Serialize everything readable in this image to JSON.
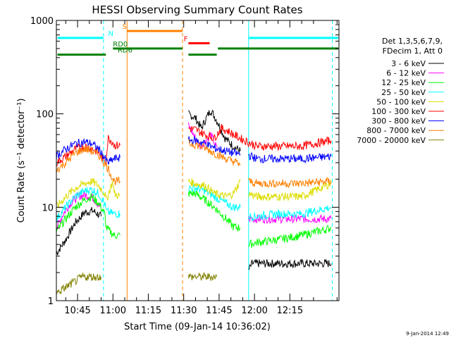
{
  "chart_data": {
    "type": "line",
    "title": "HESSI Observing Summary Count Rates",
    "xlabel": "Start Time (09-Jan-14 10:36:02)",
    "ylabel": "Count Rate (s⁻¹ detector⁻¹)",
    "y_scale": "log",
    "ylim": [
      1,
      1000
    ],
    "x_range_min": [
      36.03,
      155.8
    ],
    "x_tick_labels": [
      "10:45",
      "11:00",
      "11:15",
      "11:30",
      "11:45",
      "12:00",
      "12:15"
    ],
    "x_tick_min": [
      45,
      60,
      75,
      90,
      105,
      120,
      135
    ],
    "y_tick_labels": [
      "1",
      "10",
      "100",
      "1000"
    ],
    "y_tick_values": [
      1,
      10,
      100,
      1000
    ],
    "legend_position": "right",
    "legend_header": [
      "Det 1,3,5,6,7,9,",
      "FDecim 1, Att 0"
    ],
    "series": [
      {
        "name": "3 - 6 keV",
        "color": "#000000",
        "segments": [
          {
            "x": [
              36.03,
              40,
              44,
              48,
              51.5,
              55
            ],
            "y": [
              3.2,
              4.5,
              6.8,
              8.8,
              9.2,
              8
            ]
          },
          {
            "x": [
              92,
              95,
              97.5,
              100,
              101.5,
              104,
              107.5,
              111,
              114
            ],
            "y": [
              100,
              90,
              70,
              95,
              110,
              85,
              55,
              45,
              40
            ]
          },
          {
            "x": [
              117.5,
              119,
              130,
              152.5
            ],
            "y": [
              2.1,
              2.5,
              2.5,
              2.5
            ]
          }
        ]
      },
      {
        "name": "6 - 12 keV",
        "color": "#ff00ff",
        "segments": [
          {
            "x": [
              36.03,
              39,
              42,
              45,
              48,
              51,
              55
            ],
            "y": [
              6,
              8.5,
              11,
              13,
              13.5,
              13,
              10
            ]
          },
          {
            "x": [
              92,
              95,
              97,
              99,
              101.5,
              104.5
            ],
            "y": [
              75,
              55,
              45,
              50,
              60,
              40
            ]
          },
          {
            "x": [
              117.5,
              120,
              130,
              140,
              152.5
            ],
            "y": [
              7.5,
              7.5,
              7.5,
              7.5,
              7.5
            ]
          }
        ]
      },
      {
        "name": "12 - 25 keV",
        "color": "#00ff00",
        "segments": [
          {
            "x": [
              36.03,
              40,
              44,
              48,
              51,
              54,
              56.5,
              57.2,
              60.5,
              63
            ],
            "y": [
              5.5,
              7.5,
              10,
              12,
              13,
              11,
              8.5,
              6,
              5,
              5
            ]
          },
          {
            "x": [
              92,
              95,
              99,
              103,
              108,
              111,
              114
            ],
            "y": [
              14,
              14,
              12,
              10,
              7.5,
              6.2,
              6
            ]
          },
          {
            "x": [
              117.5,
              121,
              130,
              140,
              152.5
            ],
            "y": [
              4,
              4.2,
              4.5,
              5,
              6
            ]
          }
        ]
      },
      {
        "name": "25 - 50 keV",
        "color": "#00ffff",
        "segments": [
          {
            "x": [
              36.03,
              40,
              44,
              48,
              51,
              54,
              56.5,
              57.2,
              60.5,
              63
            ],
            "y": [
              7.5,
              10,
              13,
              15,
              15.5,
              14,
              11,
              9,
              8.5,
              8.5
            ]
          },
          {
            "x": [
              92,
              95,
              99,
              103,
              108,
              111,
              114
            ],
            "y": [
              16,
              16,
              15,
              13,
              11,
              10,
              10
            ]
          },
          {
            "x": [
              117.5,
              121,
              130,
              140,
              152.5
            ],
            "y": [
              8,
              8,
              8.5,
              8.5,
              10
            ]
          }
        ]
      },
      {
        "name": "50 - 100 keV",
        "color": "#dddd00",
        "segments": [
          {
            "x": [
              36.03,
              40,
              44,
              48,
              51,
              54,
              56.5,
              57.2,
              60,
              60.5,
              63
            ],
            "y": [
              10,
              13,
              16,
              18,
              19,
              17,
              14,
              12,
              19,
              14,
              13
            ]
          },
          {
            "x": [
              92,
              95,
              99,
              103,
              108,
              111,
              114
            ],
            "y": [
              19,
              18,
              17,
              14,
              13,
              14,
              19
            ]
          },
          {
            "x": [
              117.5,
              121,
              130,
              140,
              152.5
            ],
            "y": [
              14,
              13,
              13,
              13,
              18
            ]
          }
        ]
      },
      {
        "name": "100 - 300 keV",
        "color": "#ff0000",
        "segments": [
          {
            "x": [
              36.03,
              40,
              44,
              48,
              51,
              54,
              57,
              58,
              60,
              60.5,
              63
            ],
            "y": [
              30,
              35,
              42,
              45,
              43,
              38,
              30,
              55,
              50,
              46,
              46
            ]
          },
          {
            "x": [
              92,
              95,
              99,
              103,
              106,
              109,
              112,
              117,
              121,
              130,
              140,
              152.5
            ],
            "y": [
              70,
              68,
              60,
              55,
              70,
              65,
              58,
              50,
              45,
              45,
              45,
              52
            ]
          }
        ]
      },
      {
        "name": "300 - 800 keV",
        "color": "#0000ff",
        "segments": [
          {
            "x": [
              36.03,
              40,
              44,
              48,
              51,
              54,
              57,
              58,
              60.5,
              63
            ],
            "y": [
              35,
              42,
              48,
              50,
              48,
              42,
              32,
              30,
              33,
              34
            ]
          },
          {
            "x": [
              92,
              95,
              99,
              103,
              108,
              111,
              114
            ],
            "y": [
              52,
              52,
              48,
              43,
              40,
              38,
              37
            ]
          },
          {
            "x": [
              117.5,
              121,
              130,
              140,
              152.5
            ],
            "y": [
              36,
              33,
              33,
              33,
              35
            ]
          }
        ]
      },
      {
        "name": "800 - 7000 keV",
        "color": "#ff8000",
        "segments": [
          {
            "x": [
              36.03,
              40,
              44,
              48,
              51,
              54,
              57,
              58,
              60.5,
              63
            ],
            "y": [
              25,
              30,
              38,
              42,
              40,
              36,
              28,
              26,
              19,
              19
            ]
          },
          {
            "x": [
              92,
              95,
              99,
              103,
              108,
              111,
              114
            ],
            "y": [
              48,
              47,
              43,
              38,
              33,
              31,
              29
            ]
          },
          {
            "x": [
              117.5,
              121,
              130,
              140,
              152.5
            ],
            "y": [
              19,
              18,
              18,
              18,
              19
            ]
          }
        ]
      },
      {
        "name": "7000 - 20000 keV",
        "color": "#808000",
        "segments": [
          {
            "x": [
              36.03,
              47,
              49,
              51,
              53,
              55
            ],
            "y": [
              1.2,
              1.8,
              1.8,
              1.8,
              1.8,
              1.8
            ]
          },
          {
            "x": [
              92,
              94,
              96,
              98,
              100,
              102,
              104
            ],
            "y": [
              1.8,
              1.8,
              1.8,
              1.8,
              1.8,
              1.8,
              1.8
            ]
          }
        ]
      }
    ],
    "flags": [
      {
        "label": "N",
        "color": "#00ffff",
        "level": 650,
        "x_start_min": 36.5,
        "x_end_min": 56,
        "label_x_min": 58
      },
      {
        "label": "",
        "color": "#00ffff",
        "level": 650,
        "x_start_min": 117.5,
        "x_end_min": 155.5,
        "label_x_min": null
      },
      {
        "label": "S",
        "color": "#ff8000",
        "level": 770,
        "x_start_min": 66,
        "x_end_min": 89.5,
        "label_x_min": 64
      },
      {
        "label": "F",
        "color": "#ff0000",
        "level": 570,
        "x_start_min": 92,
        "x_end_min": 101,
        "label_x_min": 90
      },
      {
        "label": "RD0",
        "color": "#008000",
        "level": 500,
        "x_start_min": 60,
        "x_end_min": 89.5,
        "label_x_min": 60
      },
      {
        "label": "",
        "color": "#008000",
        "level": 500,
        "x_start_min": 104.5,
        "x_end_min": 155.5,
        "label_x_min": null
      },
      {
        "label": "RD6",
        "color": "#008000",
        "level": 430,
        "x_start_min": 36.5,
        "x_end_min": 57,
        "label_x_min": 62
      },
      {
        "label": "",
        "color": "#008000",
        "level": 430,
        "x_start_min": 92,
        "x_end_min": 104,
        "label_x_min": null
      }
    ],
    "vertical_lines": [
      {
        "x_min": 36.03,
        "color": "#00ffff",
        "style": "solid"
      },
      {
        "x_min": 56,
        "color": "#00ffff",
        "style": "dashed"
      },
      {
        "x_min": 66,
        "color": "#ff8000",
        "style": "solid"
      },
      {
        "x_min": 89.5,
        "color": "#ff8000",
        "style": "dashed"
      },
      {
        "x_min": 117.5,
        "color": "#00ffff",
        "style": "solid"
      },
      {
        "x_min": 153,
        "color": "#00ffff",
        "style": "dashed"
      }
    ],
    "footer_date": "9-Jan-2014 12:49"
  }
}
